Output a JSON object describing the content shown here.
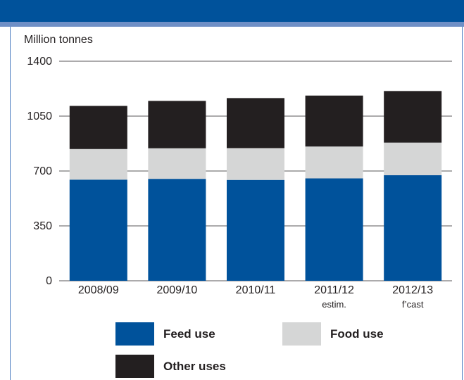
{
  "header": {
    "title": ""
  },
  "chart_data": {
    "type": "bar",
    "stacked": true,
    "ylabel": "Million tonnes",
    "ylim": [
      0,
      1400
    ],
    "yticks": [
      0,
      350,
      700,
      1050,
      1400
    ],
    "categories": [
      "2008/09",
      "2009/10",
      "2010/11",
      "2011/12",
      "2012/13"
    ],
    "category_sublabels": [
      "",
      "",
      "",
      "estim.",
      "f’cast"
    ],
    "series": [
      {
        "name": "Feed use",
        "color": "#00529b",
        "values": [
          645,
          650,
          643,
          653,
          673
        ]
      },
      {
        "name": "Food use",
        "color": "#d5d6d6",
        "values": [
          195,
          195,
          203,
          203,
          208
        ]
      },
      {
        "name": "Other uses",
        "color": "#231f20",
        "values": [
          275,
          302,
          319,
          325,
          329
        ]
      }
    ],
    "grid": false,
    "legend_position": "bottom"
  }
}
